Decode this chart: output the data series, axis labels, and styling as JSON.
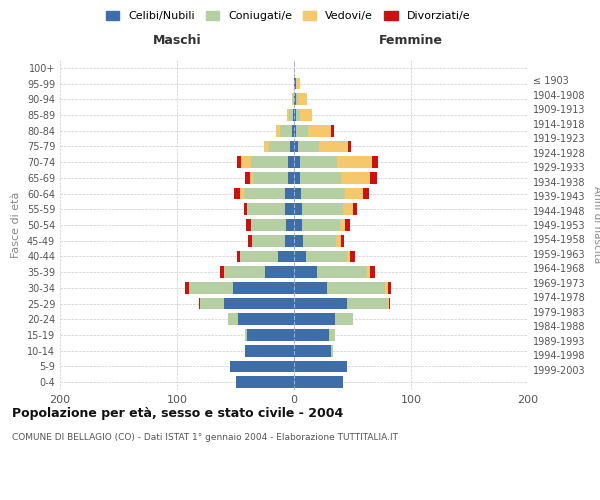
{
  "age_groups": [
    "0-4",
    "5-9",
    "10-14",
    "15-19",
    "20-24",
    "25-29",
    "30-34",
    "35-39",
    "40-44",
    "45-49",
    "50-54",
    "55-59",
    "60-64",
    "65-69",
    "70-74",
    "75-79",
    "80-84",
    "85-89",
    "90-94",
    "95-99",
    "100+"
  ],
  "birth_years": [
    "1999-2003",
    "1994-1998",
    "1989-1993",
    "1984-1988",
    "1979-1983",
    "1974-1978",
    "1969-1973",
    "1964-1968",
    "1959-1963",
    "1954-1958",
    "1949-1953",
    "1944-1948",
    "1939-1943",
    "1934-1938",
    "1929-1933",
    "1924-1928",
    "1919-1923",
    "1914-1918",
    "1909-1913",
    "1904-1908",
    "≤ 1903"
  ],
  "maschi": {
    "celibi": [
      50,
      55,
      42,
      40,
      48,
      60,
      52,
      25,
      14,
      8,
      7,
      8,
      8,
      5,
      5,
      3,
      2,
      1,
      0,
      0,
      0
    ],
    "coniugati": [
      0,
      0,
      0,
      2,
      8,
      20,
      38,
      35,
      32,
      28,
      30,
      32,
      35,
      30,
      32,
      18,
      10,
      3,
      1,
      0,
      0
    ],
    "vedovi": [
      0,
      0,
      0,
      0,
      0,
      0,
      0,
      0,
      0,
      0,
      0,
      0,
      3,
      3,
      8,
      5,
      3,
      2,
      1,
      0,
      0
    ],
    "divorziati": [
      0,
      0,
      0,
      0,
      0,
      1,
      3,
      3,
      3,
      3,
      4,
      3,
      5,
      4,
      4,
      0,
      0,
      0,
      0,
      0,
      0
    ]
  },
  "femmine": {
    "nubili": [
      42,
      45,
      32,
      30,
      35,
      45,
      28,
      20,
      10,
      8,
      7,
      7,
      6,
      5,
      5,
      3,
      2,
      2,
      2,
      2,
      0
    ],
    "coniugate": [
      0,
      0,
      1,
      5,
      15,
      35,
      50,
      42,
      35,
      28,
      32,
      35,
      38,
      35,
      32,
      18,
      10,
      3,
      1,
      0,
      0
    ],
    "vedove": [
      0,
      0,
      0,
      0,
      0,
      1,
      2,
      3,
      3,
      4,
      5,
      8,
      15,
      25,
      30,
      25,
      20,
      10,
      8,
      3,
      0
    ],
    "divorziate": [
      0,
      0,
      0,
      0,
      0,
      1,
      3,
      4,
      4,
      3,
      4,
      4,
      5,
      6,
      5,
      3,
      2,
      0,
      0,
      0,
      0
    ]
  },
  "colors": {
    "celibi": "#3d6ea8",
    "coniugati": "#b5cfa3",
    "vedovi": "#f5c96b",
    "divorziati": "#cc1111"
  },
  "title": "Popolazione per età, sesso e stato civile - 2004",
  "subtitle": "COMUNE DI BELLAGIO (CO) - Dati ISTAT 1° gennaio 2004 - Elaborazione TUTTITALIA.IT",
  "xlabel_left": "Maschi",
  "xlabel_right": "Femmine",
  "ylabel_left": "Fasce di età",
  "ylabel_right": "Anni di nascita",
  "xlim": 200,
  "legend_labels": [
    "Celibi/Nubili",
    "Coniugati/e",
    "Vedovi/e",
    "Divorziati/e"
  ],
  "background_color": "#ffffff",
  "bar_height": 0.75
}
